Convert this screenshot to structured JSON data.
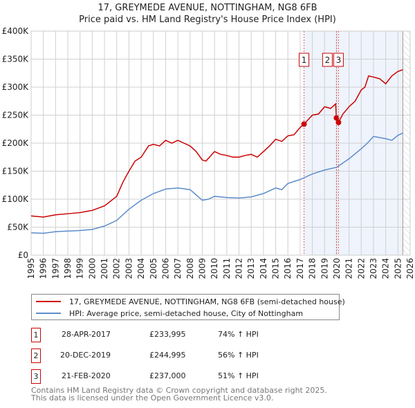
{
  "title": "17, GREYMEDE AVENUE, NOTTINGHAM, NG8 6FB",
  "subtitle": "Price paid vs. HM Land Registry's House Price Index (HPI)",
  "chart_data": {
    "type": "line",
    "xlim": [
      1995,
      2026
    ],
    "ylim": [
      0,
      400000
    ],
    "x_ticks": [
      "1995",
      "1996",
      "1997",
      "1998",
      "1999",
      "2000",
      "2001",
      "2002",
      "2003",
      "2004",
      "2005",
      "2006",
      "2007",
      "2008",
      "2009",
      "2010",
      "2011",
      "2012",
      "2013",
      "2014",
      "2015",
      "2016",
      "2017",
      "2018",
      "2019",
      "2020",
      "2021",
      "2022",
      "2023",
      "2024",
      "2025",
      "2026"
    ],
    "y_ticks": [
      {
        "v": 0,
        "label": "£0"
      },
      {
        "v": 50000,
        "label": "£50K"
      },
      {
        "v": 100000,
        "label": "£100K"
      },
      {
        "v": 150000,
        "label": "£150K"
      },
      {
        "v": 200000,
        "label": "£200K"
      },
      {
        "v": 250000,
        "label": "£250K"
      },
      {
        "v": 300000,
        "label": "£300K"
      },
      {
        "v": 350000,
        "label": "£350K"
      },
      {
        "v": 400000,
        "label": "£400K"
      }
    ],
    "series": [
      {
        "name": "17, GREYMEDE AVENUE, NOTTINGHAM, NG8 6FB (semi-detached house)",
        "color": "#cc0000",
        "x": [
          1995,
          1996,
          1997,
          1998,
          1999,
          2000,
          2001,
          2002,
          2002.5,
          2003,
          2003.5,
          2004,
          2004.6,
          2005,
          2005.5,
          2006,
          2006.5,
          2007,
          2007.5,
          2008,
          2008.5,
          2009,
          2009.3,
          2010,
          2010.5,
          2011,
          2011.5,
          2012,
          2012.5,
          2013,
          2013.5,
          2014,
          2014.5,
          2015,
          2015.5,
          2016,
          2016.5,
          2017,
          2017.32,
          2018,
          2018.5,
          2019,
          2019.5,
          2019.9,
          2019.97,
          2020.14,
          2020.5,
          2021,
          2021.5,
          2022,
          2022.3,
          2022.6,
          2023,
          2023.5,
          2024,
          2024.5,
          2025,
          2025.4
        ],
        "y": [
          70000,
          68000,
          72000,
          74000,
          76000,
          80000,
          88000,
          105000,
          130000,
          150000,
          168000,
          175000,
          195000,
          198000,
          195000,
          205000,
          200000,
          205000,
          200000,
          195000,
          185000,
          170000,
          168000,
          185000,
          180000,
          178000,
          175000,
          175000,
          178000,
          180000,
          175000,
          185000,
          195000,
          207000,
          203000,
          213000,
          215000,
          228000,
          233995,
          250000,
          252000,
          265000,
          262000,
          270000,
          244995,
          237000,
          252000,
          265000,
          275000,
          295000,
          300000,
          320000,
          318000,
          315000,
          306000,
          320000,
          328000,
          331000
        ]
      },
      {
        "name": "HPI: Average price, semi-detached house, City of Nottingham",
        "color": "#5b8ccc",
        "x": [
          1995,
          1996,
          1997,
          1998,
          1999,
          2000,
          2001,
          2002,
          2003,
          2004,
          2005,
          2006,
          2007,
          2008,
          2009,
          2009.5,
          2010,
          2011,
          2012,
          2013,
          2014,
          2015,
          2015.5,
          2016,
          2017,
          2018,
          2019,
          2020,
          2021,
          2022,
          2022.5,
          2023,
          2023.5,
          2024,
          2024.5,
          2025,
          2025.4
        ],
        "y": [
          40000,
          39000,
          42000,
          43000,
          44000,
          46000,
          52000,
          62000,
          82000,
          98000,
          110000,
          118000,
          120000,
          117000,
          98000,
          100000,
          105000,
          103000,
          102000,
          104000,
          110000,
          120000,
          117000,
          128000,
          135000,
          145000,
          152000,
          157000,
          172000,
          190000,
          200000,
          212000,
          210000,
          208000,
          205000,
          214000,
          218000
        ]
      }
    ],
    "annotations": [
      {
        "label": "1",
        "x": 2017.32
      },
      {
        "label": "2",
        "x": 2019.97
      },
      {
        "label": "3",
        "x": 2020.14
      }
    ],
    "shaded_range": [
      2017.32,
      2025.4
    ],
    "hatched_from": 2025.4
  },
  "legend": [
    "17, GREYMEDE AVENUE, NOTTINGHAM, NG8 6FB (semi-detached house)",
    "HPI: Average price, semi-detached house, City of Nottingham"
  ],
  "transactions": [
    {
      "num": "1",
      "date": "28-APR-2017",
      "price": "£233,995",
      "hpi": "74% ↑ HPI"
    },
    {
      "num": "2",
      "date": "20-DEC-2019",
      "price": "£244,995",
      "hpi": "56% ↑ HPI"
    },
    {
      "num": "3",
      "date": "21-FEB-2020",
      "price": "£237,000",
      "hpi": "51% ↑ HPI"
    }
  ],
  "footer": [
    "Contains HM Land Registry data © Crown copyright and database right 2025.",
    "This data is licensed under the Open Government Licence v3.0."
  ]
}
